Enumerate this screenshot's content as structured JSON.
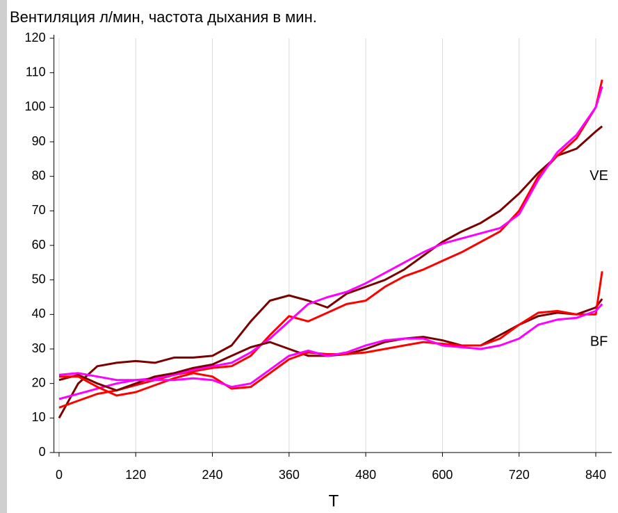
{
  "chart_data": {
    "type": "line",
    "title": "Вентиляция л/мин, частота дыхания в мин.",
    "x_label": "T",
    "x": [
      0,
      30,
      60,
      90,
      120,
      150,
      180,
      210,
      240,
      270,
      300,
      330,
      360,
      390,
      420,
      450,
      480,
      510,
      540,
      570,
      600,
      630,
      660,
      690,
      720,
      750,
      780,
      810,
      840,
      850
    ],
    "series": [
      {
        "color": "#7b0000",
        "values": [
          10,
          20,
          25,
          26,
          26.5,
          26,
          27.5,
          27.5,
          28,
          31,
          38,
          44,
          45.5,
          44,
          42,
          46,
          48,
          50,
          53,
          57,
          61,
          64,
          66.5,
          70,
          75,
          81,
          86,
          88,
          93,
          94.5
        ]
      },
      {
        "color": "#ff0000",
        "values": [
          13,
          15,
          17,
          18,
          19.5,
          21,
          22.5,
          23.5,
          24.5,
          25,
          28,
          34,
          39.5,
          38,
          40.5,
          43,
          44,
          48,
          51,
          53,
          55.5,
          58,
          61,
          64,
          70,
          80,
          86,
          91,
          100,
          108
        ]
      },
      {
        "color": "#ff00ff",
        "values": [
          15.5,
          17,
          18.5,
          20,
          21,
          21.5,
          22.5,
          24,
          25,
          26,
          29,
          33,
          38,
          43,
          45,
          46.5,
          49,
          52,
          55,
          58,
          60.5,
          62,
          63.5,
          65,
          69,
          79,
          87,
          92,
          100,
          106
        ]
      },
      {
        "color": "#7b0000",
        "values": [
          21,
          22.5,
          20,
          18,
          20,
          22,
          23,
          24.5,
          25.5,
          28,
          30.5,
          32,
          30,
          28,
          28,
          28.5,
          30,
          32,
          33,
          33.5,
          32.5,
          31,
          31,
          34,
          37,
          39.5,
          40.5,
          40,
          42,
          44.5
        ]
      },
      {
        "color": "#ff0000",
        "values": [
          22,
          22,
          19,
          16.5,
          17.5,
          19.5,
          21.5,
          23,
          22,
          18.5,
          19,
          23,
          27,
          29,
          28.5,
          28.5,
          29,
          30,
          31,
          32,
          31.5,
          31,
          31,
          33,
          37,
          40.5,
          41,
          40,
          40,
          52.5
        ]
      },
      {
        "color": "#ff00ff",
        "values": [
          22.5,
          23,
          22,
          21,
          21,
          21,
          21,
          21.5,
          21,
          19,
          20,
          24,
          28,
          29.5,
          28,
          29,
          31,
          32.5,
          33,
          33,
          31,
          30.5,
          30,
          31,
          33,
          37,
          38.5,
          39,
          41,
          43
        ]
      }
    ],
    "annotations": [
      {
        "text": "VE",
        "x": 845,
        "y": 80
      },
      {
        "text": "BF",
        "x": 845,
        "y": 32
      }
    ],
    "xlim": [
      -8,
      865
    ],
    "ylim": [
      0,
      120
    ],
    "xticks": [
      0,
      120,
      240,
      360,
      480,
      600,
      720,
      840
    ],
    "yticks": [
      0,
      10,
      20,
      30,
      40,
      50,
      60,
      70,
      80,
      90,
      100,
      110,
      120
    ],
    "grid": "x"
  }
}
